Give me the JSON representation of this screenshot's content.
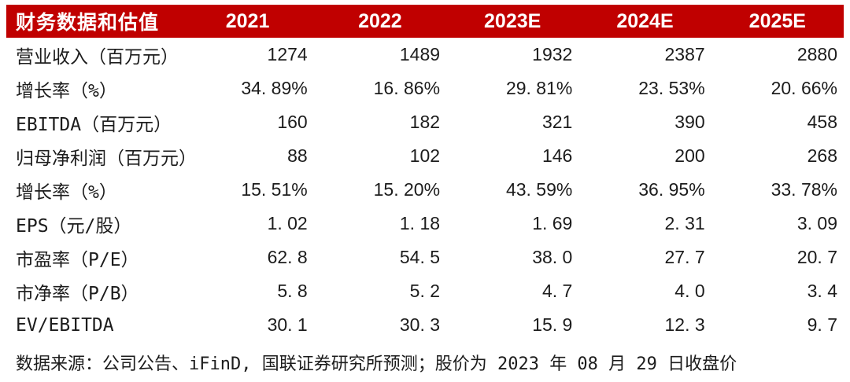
{
  "theme": {
    "header_bg": "#c00000",
    "header_text": "#ffffff",
    "body_text": "#1c1c1c"
  },
  "table": {
    "header": {
      "label": "财务数据和估值",
      "columns": [
        "2021",
        "2022",
        "2023E",
        "2024E",
        "2025E"
      ]
    },
    "rows": [
      {
        "label": "营业收入（百万元）",
        "values": [
          "1274",
          "1489",
          "1932",
          "2387",
          "2880"
        ]
      },
      {
        "label": "增长率（%）",
        "values": [
          "34. 89%",
          "16. 86%",
          "29. 81%",
          "23. 53%",
          "20. 66%"
        ]
      },
      {
        "label": "EBITDA（百万元）",
        "values": [
          "160",
          "182",
          "321",
          "390",
          "458"
        ]
      },
      {
        "label": "归母净利润（百万元）",
        "values": [
          "88",
          "102",
          "146",
          "200",
          "268"
        ]
      },
      {
        "label": "增长率（%）",
        "values": [
          "15. 51%",
          "15. 20%",
          "43. 59%",
          "36. 95%",
          "33. 78%"
        ]
      },
      {
        "label": "EPS（元/股）",
        "values": [
          "1. 02",
          "1. 18",
          "1. 69",
          "2. 31",
          "3. 09"
        ]
      },
      {
        "label": "市盈率（P/E）",
        "values": [
          "62. 8",
          "54. 5",
          "38. 0",
          "27. 7",
          "20. 7"
        ]
      },
      {
        "label": "市净率（P/B）",
        "values": [
          "5. 8",
          "5. 2",
          "4. 7",
          "4. 0",
          "3. 4"
        ]
      },
      {
        "label": "EV/EBITDA",
        "values": [
          "30. 1",
          "30. 3",
          "15. 9",
          "12. 3",
          "9. 7"
        ]
      }
    ]
  },
  "footer": {
    "source_note": "数据来源：公司公告、iFinD, 国联证券研究所预测；股价为 2023 年 08 月 29 日收盘价"
  }
}
